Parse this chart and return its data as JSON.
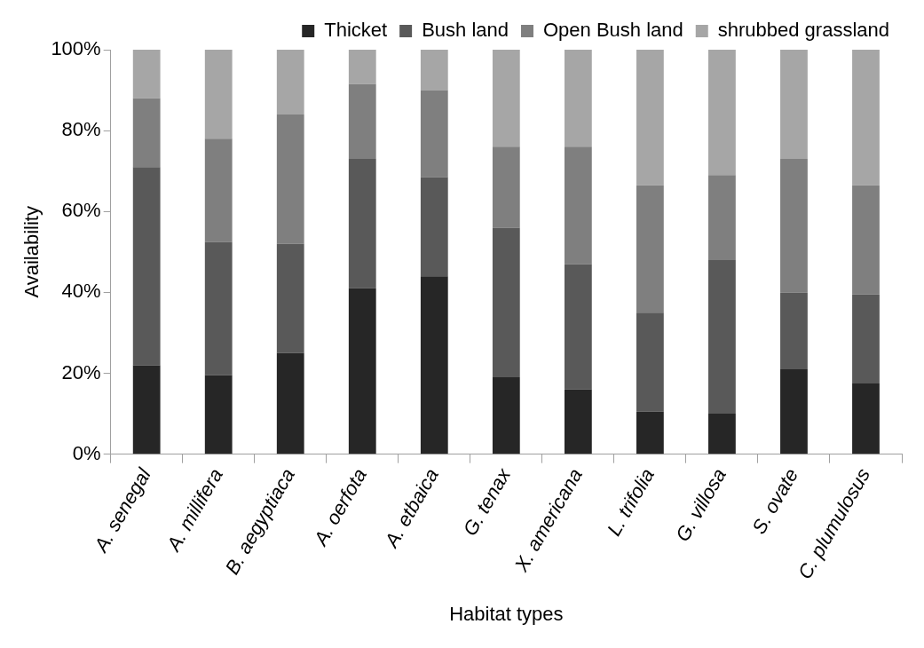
{
  "chart_data": {
    "type": "bar",
    "stacked": true,
    "xlabel": "Habitat types",
    "ylabel": "Availability",
    "categories": [
      "A. senegal",
      "A. millifera",
      "B. aegyptiaca",
      "A. oerfota",
      "A. etbaica",
      "G. tenax",
      "X. americana",
      "L. trifolia",
      "G. villosa",
      "S. ovate",
      "C. plumulosus"
    ],
    "series": [
      {
        "name": "Thicket",
        "color": "#262626",
        "values": [
          22,
          19.5,
          25,
          41,
          44,
          19,
          16,
          10.5,
          10,
          21,
          17.5
        ]
      },
      {
        "name": "Bush land",
        "color": "#595959",
        "values": [
          49,
          33,
          27,
          32,
          24.5,
          37,
          31,
          24.5,
          38,
          19,
          22
        ]
      },
      {
        "name": "Open Bush land",
        "color": "#7f7f7f",
        "values": [
          17,
          25.5,
          32,
          18.5,
          21.5,
          20,
          29,
          31.5,
          21,
          33,
          27
        ]
      },
      {
        "name": "shrubbed grassland",
        "color": "#a6a6a6",
        "values": [
          12,
          22,
          16,
          8.5,
          10,
          24,
          24,
          33.5,
          31,
          27,
          33.5
        ]
      }
    ],
    "ylim": [
      0,
      100
    ],
    "yticks": [
      {
        "value": 0,
        "label": "0%"
      },
      {
        "value": 20,
        "label": "20%"
      },
      {
        "value": 40,
        "label": "40%"
      },
      {
        "value": 60,
        "label": "60%"
      },
      {
        "value": 80,
        "label": "80%"
      },
      {
        "value": 100,
        "label": "100%"
      }
    ],
    "legend": "top",
    "grid": false
  }
}
